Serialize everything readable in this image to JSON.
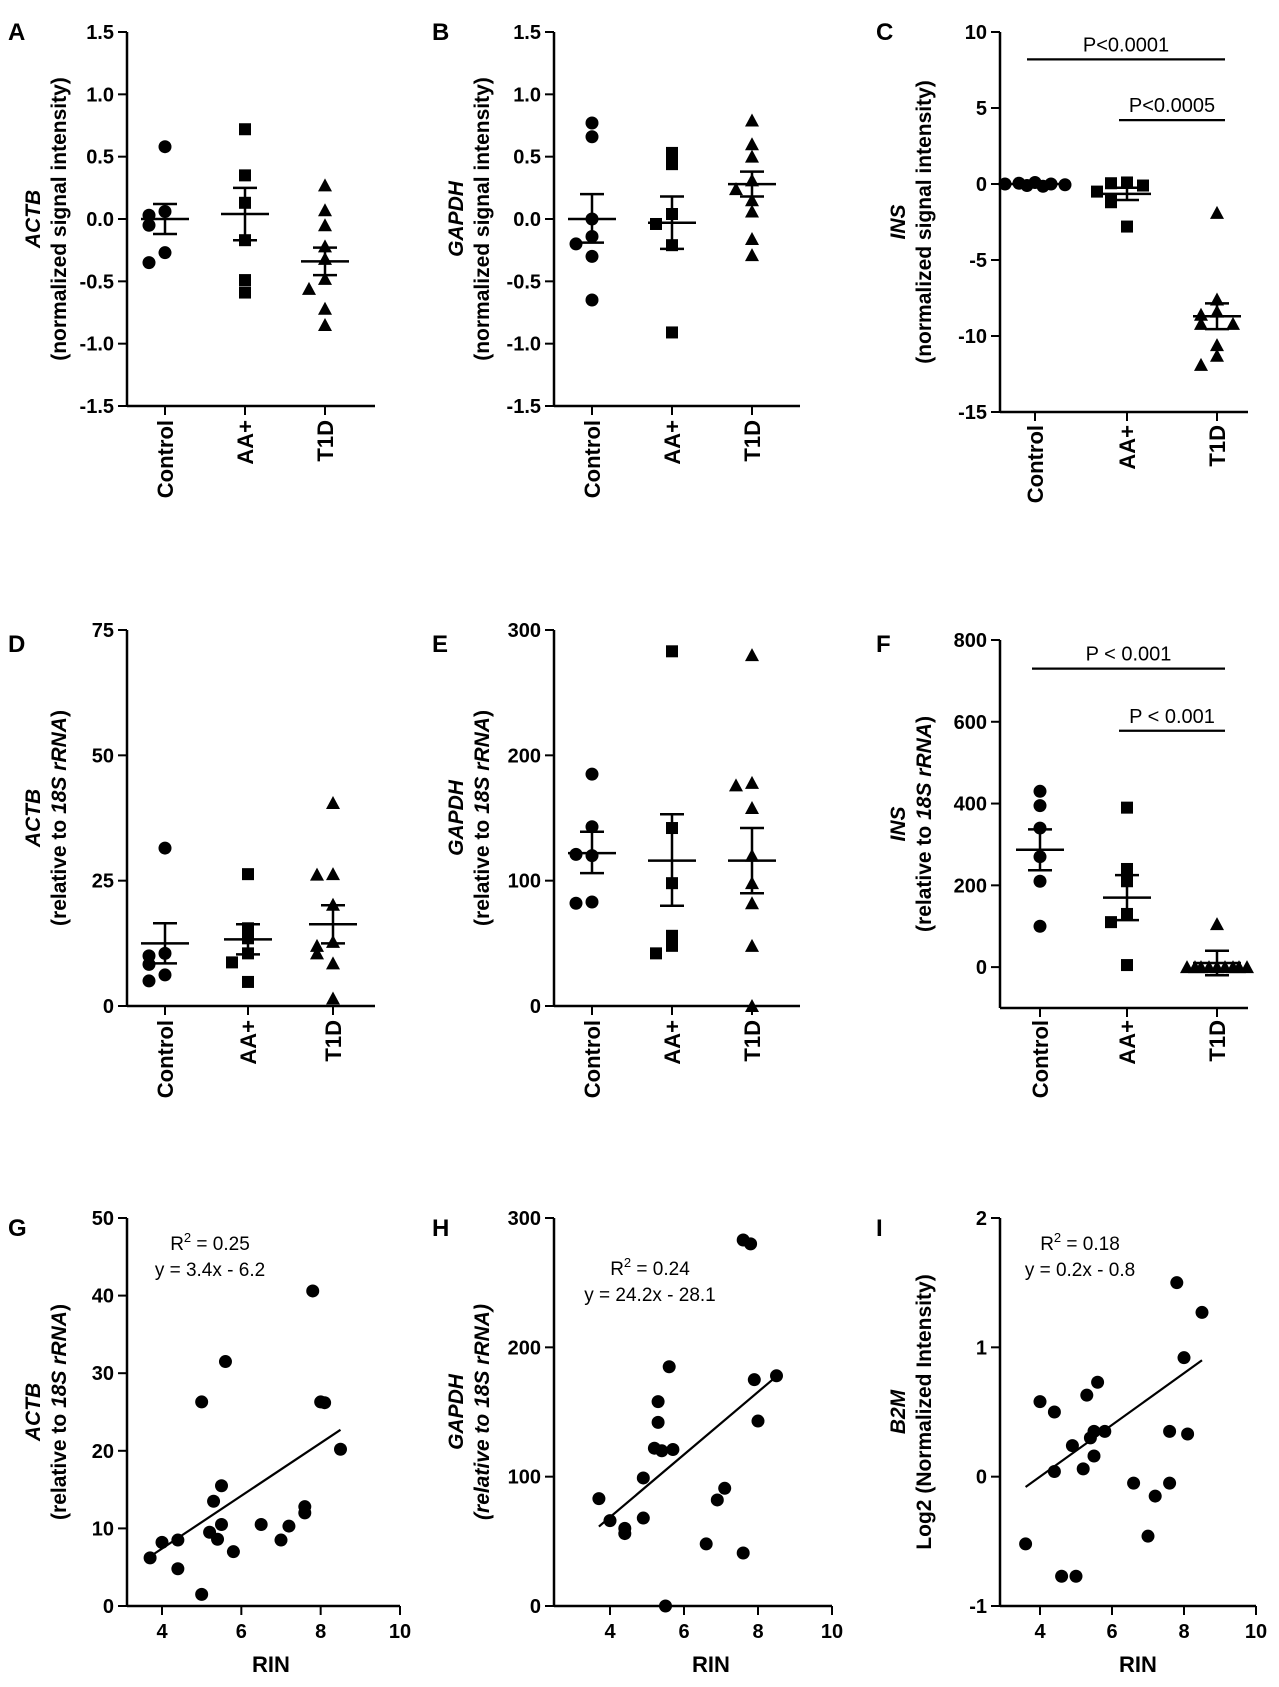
{
  "chart_data": [
    {
      "panel": "A",
      "type": "scatter",
      "subtype": "dot-plot",
      "ylabel_gene": "ACTB",
      "ylabel_rest": "(normalized signal intensity)",
      "categories": [
        "Control",
        "AA+",
        "T1D"
      ],
      "ylim": [
        -1.5,
        1.5
      ],
      "yticks": [
        "1.5",
        "1.0",
        "0.5",
        "0.0",
        "-0.5",
        "-1.0",
        "-1.5"
      ],
      "groups": [
        {
          "name": "Control",
          "marker": "circle",
          "values": [
            0.58,
            0.06,
            0.03,
            -0.05,
            -0.27,
            -0.35
          ],
          "mean": 0.0,
          "sem_low": -0.12,
          "sem_high": 0.12
        },
        {
          "name": "AA+",
          "marker": "square",
          "values": [
            0.72,
            0.35,
            0.13,
            -0.17,
            -0.49,
            -0.59
          ],
          "mean": 0.04,
          "sem_low": -0.17,
          "sem_high": 0.25
        },
        {
          "name": "T1D",
          "marker": "triangle",
          "values": [
            0.27,
            0.07,
            -0.05,
            -0.22,
            -0.32,
            -0.48,
            -0.56,
            -0.72,
            -0.85
          ],
          "mean": -0.34,
          "sem_low": -0.45,
          "sem_high": -0.23
        }
      ],
      "annotations": []
    },
    {
      "panel": "B",
      "type": "scatter",
      "subtype": "dot-plot",
      "ylabel_gene": "GAPDH",
      "ylabel_rest": "(normalized signal intensity)",
      "categories": [
        "Control",
        "AA+",
        "T1D"
      ],
      "ylim": [
        -1.5,
        1.5
      ],
      "yticks": [
        "1.5",
        "1.0",
        "0.5",
        "0.0",
        "-0.5",
        "-1.0",
        "-1.5"
      ],
      "groups": [
        {
          "name": "Control",
          "marker": "circle",
          "values": [
            0.77,
            0.66,
            0.0,
            -0.14,
            -0.2,
            -0.3,
            -0.65
          ],
          "mean": 0.0,
          "sem_low": -0.19,
          "sem_high": 0.2
        },
        {
          "name": "AA+",
          "marker": "square",
          "values": [
            0.53,
            0.44,
            0.04,
            -0.04,
            -0.21,
            -0.91
          ],
          "mean": -0.03,
          "sem_low": -0.24,
          "sem_high": 0.18
        },
        {
          "name": "T1D",
          "marker": "triangle",
          "values": [
            0.79,
            0.6,
            0.5,
            0.31,
            0.24,
            0.15,
            0.06,
            -0.16,
            -0.29
          ],
          "mean": 0.28,
          "sem_low": 0.18,
          "sem_high": 0.38
        }
      ],
      "annotations": []
    },
    {
      "panel": "C",
      "type": "scatter",
      "subtype": "dot-plot",
      "ylabel_gene": "INS",
      "ylabel_rest": "(normalized signal intensity)",
      "categories": [
        "Control",
        "AA+",
        "T1D"
      ],
      "ylim": [
        -15,
        10
      ],
      "yticks": [
        "10",
        "5",
        "0",
        "-5",
        "-10",
        "-15"
      ],
      "groups": [
        {
          "name": "Control",
          "marker": "circle",
          "values": [
            0.1,
            0.05,
            0.0,
            0.0,
            -0.05,
            -0.1,
            -0.15
          ],
          "mean": 0.0,
          "sem_low": -0.05,
          "sem_high": 0.05
        },
        {
          "name": "AA+",
          "marker": "square",
          "values": [
            0.1,
            0.05,
            -0.1,
            -0.5,
            -1.1,
            -1.2,
            -2.8
          ],
          "mean": -0.65,
          "sem_low": -1.05,
          "sem_high": -0.25
        },
        {
          "name": "T1D",
          "marker": "triangle",
          "values": [
            -1.9,
            -7.6,
            -8.4,
            -8.6,
            -9.2,
            -9.2,
            -10.6,
            -11.3,
            -11.9
          ],
          "mean": -8.7,
          "sem_low": -9.55,
          "sem_high": -7.85
        }
      ],
      "annotations": [
        {
          "text": "P<0.0001",
          "from": "Control",
          "to": "T1D",
          "y": 8.2
        },
        {
          "text": "P<0.0005",
          "from": "AA+",
          "to": "T1D",
          "y": 4.2
        }
      ]
    },
    {
      "panel": "D",
      "type": "scatter",
      "subtype": "dot-plot",
      "ylabel_gene": "ACTB",
      "ylabel_rest_pre": "(relative to ",
      "ylabel_rest_it": "18S rRNA",
      "ylabel_rest_post": ")",
      "categories": [
        "Control",
        "AA+",
        "T1D"
      ],
      "ylim": [
        0,
        75
      ],
      "yticks": [
        "75",
        "50",
        "25",
        "0"
      ],
      "groups": [
        {
          "name": "Control",
          "marker": "circle",
          "values": [
            31.5,
            10.5,
            10.0,
            8.3,
            6.2,
            5.0
          ],
          "mean": 12.5,
          "sem_low": 8.5,
          "sem_high": 16.5
        },
        {
          "name": "AA+",
          "marker": "square",
          "values": [
            26.3,
            15.5,
            13.5,
            10.5,
            8.7,
            4.8
          ],
          "mean": 13.3,
          "sem_low": 10.3,
          "sem_high": 16.3
        },
        {
          "name": "T1D",
          "marker": "triangle",
          "values": [
            40.5,
            26.3,
            26.2,
            20.2,
            12.8,
            12.0,
            10.5,
            8.5,
            1.5
          ],
          "mean": 16.3,
          "sem_low": 12.5,
          "sem_high": 20.1
        }
      ],
      "annotations": []
    },
    {
      "panel": "E",
      "type": "scatter",
      "subtype": "dot-plot",
      "ylabel_gene": "GAPDH",
      "ylabel_rest_pre": "(relative to ",
      "ylabel_rest_it": "18S rRNA",
      "ylabel_rest_post": ")",
      "categories": [
        "Control",
        "AA+",
        "T1D"
      ],
      "ylim": [
        0,
        300
      ],
      "yticks": [
        "300",
        "200",
        "100",
        "0"
      ],
      "groups": [
        {
          "name": "Control",
          "marker": "circle",
          "values": [
            185,
            143,
            120,
            121,
            83,
            82
          ],
          "mean": 122,
          "sem_low": 106,
          "sem_high": 139
        },
        {
          "name": "AA+",
          "marker": "square",
          "values": [
            283,
            142,
            98,
            56,
            48,
            42
          ],
          "mean": 116,
          "sem_low": 80,
          "sem_high": 153
        },
        {
          "name": "T1D",
          "marker": "triangle",
          "values": [
            280,
            178,
            176,
            158,
            120,
            98,
            82,
            48,
            0
          ],
          "mean": 116,
          "sem_low": 90,
          "sem_high": 142
        }
      ],
      "annotations": []
    },
    {
      "panel": "F",
      "type": "scatter",
      "subtype": "dot-plot",
      "ylabel_gene": "INS",
      "ylabel_rest_pre": "(relative to ",
      "ylabel_rest_it": "18S rRNA",
      "ylabel_rest_post": ")",
      "categories": [
        "Control",
        "AA+",
        "T1D"
      ],
      "ylim": [
        -100,
        800
      ],
      "yticks": [
        "800",
        "600",
        "400",
        "200",
        "0"
      ],
      "groups": [
        {
          "name": "Control",
          "marker": "circle",
          "values": [
            430,
            395,
            340,
            270,
            210,
            100
          ],
          "mean": 287,
          "sem_low": 237,
          "sem_high": 337
        },
        {
          "name": "AA+",
          "marker": "square",
          "values": [
            390,
            240,
            210,
            130,
            110,
            5
          ],
          "mean": 170,
          "sem_low": 115,
          "sem_high": 225
        },
        {
          "name": "T1D",
          "marker": "triangle",
          "values": [
            105,
            0,
            0,
            0,
            0,
            0,
            0,
            0,
            0,
            0
          ],
          "mean": 10,
          "sem_low": -20,
          "sem_high": 40
        }
      ],
      "annotations": [
        {
          "text": "P < 0.001",
          "from": "Control",
          "to": "T1D",
          "y": 730
        },
        {
          "text": "P < 0.001",
          "from": "AA+",
          "to": "T1D",
          "y": 578
        }
      ]
    },
    {
      "panel": "G",
      "type": "scatter",
      "subtype": "regression",
      "xlabel": "RIN",
      "ylabel_gene": "ACTB",
      "ylabel_rest_pre": "(relative to ",
      "ylabel_rest_it": "18S rRNA",
      "ylabel_rest_post": ")",
      "xlim": [
        3,
        10
      ],
      "ylim": [
        0,
        50
      ],
      "xticks": [
        "4",
        "6",
        "8",
        "10"
      ],
      "yticks": [
        "50",
        "40",
        "30",
        "20",
        "10",
        "0"
      ],
      "r2_prefix": "R",
      "r2_sup": "2",
      "r2_text": " = 0.25",
      "equation": "y = 3.4x - 6.2",
      "fit": {
        "slope": 3.4,
        "intercept": -6.2,
        "x_range": [
          3.7,
          8.5
        ]
      },
      "points": [
        [
          3.7,
          6.2
        ],
        [
          4.0,
          8.2
        ],
        [
          4.4,
          8.5
        ],
        [
          4.4,
          4.8
        ],
        [
          5.0,
          26.3
        ],
        [
          5.0,
          1.5
        ],
        [
          5.2,
          9.5
        ],
        [
          5.3,
          13.5
        ],
        [
          5.4,
          8.6
        ],
        [
          5.5,
          10.5
        ],
        [
          5.5,
          15.5
        ],
        [
          5.6,
          31.5
        ],
        [
          5.8,
          7.0
        ],
        [
          6.5,
          10.5
        ],
        [
          7.0,
          8.5
        ],
        [
          7.2,
          10.3
        ],
        [
          7.6,
          12.0
        ],
        [
          7.6,
          12.8
        ],
        [
          7.8,
          40.6
        ],
        [
          8.0,
          26.3
        ],
        [
          8.1,
          26.2
        ],
        [
          8.5,
          20.2
        ]
      ]
    },
    {
      "panel": "H",
      "type": "scatter",
      "subtype": "regression",
      "xlabel": "RIN",
      "ylabel_gene": "GAPDH",
      "ylabel_rest_pre": "(relative to ",
      "ylabel_rest_it": "18S rRNA",
      "ylabel_rest_post": ")",
      "ylabel_italic_all": true,
      "xlim": [
        3,
        10
      ],
      "ylim": [
        0,
        300
      ],
      "xticks": [
        "4",
        "6",
        "8",
        "10"
      ],
      "yticks": [
        "300",
        "200",
        "100",
        "0"
      ],
      "r2_prefix": "R",
      "r2_sup": "2",
      "r2_text": " = 0.24",
      "equation": "y = 24.2x - 28.1",
      "fit": {
        "slope": 24.2,
        "intercept": -28.1,
        "x_range": [
          3.7,
          8.5
        ]
      },
      "points": [
        [
          3.7,
          83
        ],
        [
          4.0,
          66
        ],
        [
          4.4,
          60
        ],
        [
          4.4,
          56
        ],
        [
          4.9,
          99
        ],
        [
          4.9,
          68
        ],
        [
          5.2,
          122
        ],
        [
          5.3,
          158
        ],
        [
          5.3,
          142
        ],
        [
          5.4,
          120
        ],
        [
          5.5,
          0
        ],
        [
          5.6,
          185
        ],
        [
          5.7,
          121
        ],
        [
          6.6,
          48
        ],
        [
          6.9,
          82
        ],
        [
          7.1,
          91
        ],
        [
          7.6,
          41
        ],
        [
          7.6,
          283
        ],
        [
          7.8,
          280
        ],
        [
          7.9,
          175
        ],
        [
          8.0,
          143
        ],
        [
          8.5,
          178
        ]
      ]
    },
    {
      "panel": "I",
      "type": "scatter",
      "subtype": "regression",
      "xlabel": "RIN",
      "ylabel_gene": "B2M",
      "ylabel_rest": "Log2 (Normalized Intensity)",
      "xlim": [
        3,
        10
      ],
      "ylim": [
        -1,
        2
      ],
      "xticks": [
        "4",
        "6",
        "8",
        "10"
      ],
      "yticks": [
        "2",
        "1",
        "0",
        "-1"
      ],
      "r2_prefix": "R",
      "r2_sup": "2",
      "r2_text": " = 0.18",
      "equation": "y = 0.2x - 0.8",
      "fit": {
        "slope": 0.2,
        "intercept": -0.8,
        "x_range": [
          3.6,
          8.5
        ]
      },
      "points": [
        [
          3.6,
          -0.52
        ],
        [
          4.0,
          0.58
        ],
        [
          4.4,
          0.5
        ],
        [
          4.4,
          0.04
        ],
        [
          4.6,
          -0.77
        ],
        [
          4.9,
          0.24
        ],
        [
          5.0,
          -0.77
        ],
        [
          5.2,
          0.06
        ],
        [
          5.3,
          0.63
        ],
        [
          5.4,
          0.3
        ],
        [
          5.5,
          0.16
        ],
        [
          5.5,
          0.35
        ],
        [
          5.6,
          0.73
        ],
        [
          5.8,
          0.35
        ],
        [
          6.6,
          -0.05
        ],
        [
          7.0,
          -0.46
        ],
        [
          7.2,
          -0.15
        ],
        [
          7.6,
          -0.05
        ],
        [
          7.6,
          0.35
        ],
        [
          7.8,
          1.5
        ],
        [
          8.0,
          0.92
        ],
        [
          8.1,
          0.33
        ],
        [
          8.5,
          1.27
        ]
      ]
    }
  ]
}
